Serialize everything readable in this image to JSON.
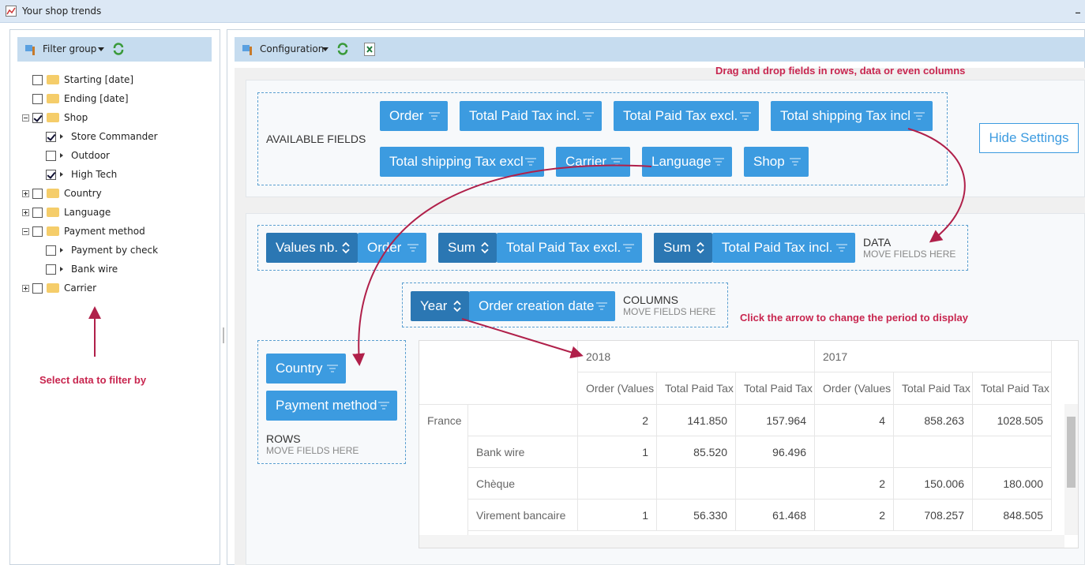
{
  "window": {
    "title": "Your shop trends",
    "minimize": "_"
  },
  "filter": {
    "toolbar_label": "Filter group",
    "tree": [
      {
        "label": "Starting [date]",
        "checked": false
      },
      {
        "label": "Ending [date]",
        "checked": false
      },
      {
        "label": "Shop",
        "checked": true,
        "expanded": true
      },
      {
        "label": "Store Commander",
        "checked": true
      },
      {
        "label": "Outdoor",
        "checked": false
      },
      {
        "label": "High Tech",
        "checked": true
      },
      {
        "label": "Country",
        "checked": false
      },
      {
        "label": "Language",
        "checked": false
      },
      {
        "label": "Payment method",
        "checked": false,
        "expanded": true
      },
      {
        "label": "Payment by check",
        "checked": false
      },
      {
        "label": "Bank wire",
        "checked": false
      },
      {
        "label": "Carrier",
        "checked": false
      }
    ]
  },
  "config": {
    "toolbar_label": "Configuration"
  },
  "annotations": {
    "drag": "Drag and drop fields in rows, data or even columns",
    "select": "Select data to filter by",
    "period": "Click the arrow to change the period to display"
  },
  "available": {
    "label": "AVAILABLE FIELDS",
    "fields": [
      "Order",
      "Total Paid Tax incl.",
      "Total Paid Tax excl.",
      "Total shipping Tax incl",
      "Total shipping Tax excl",
      "Carrier",
      "Language",
      "Shop"
    ]
  },
  "hide_settings": "Hide Settings",
  "data_zone": {
    "label": "DATA",
    "hint": "MOVE FIELDS HERE",
    "items": [
      {
        "agg": "Values nb.",
        "field": "Order"
      },
      {
        "agg": "Sum",
        "field": "Total Paid Tax excl."
      },
      {
        "agg": "Sum",
        "field": "Total Paid Tax incl."
      }
    ]
  },
  "columns_zone": {
    "label": "COLUMNS",
    "hint": "MOVE FIELDS HERE",
    "agg": "Year",
    "field": "Order creation date"
  },
  "rows_zone": {
    "label": "ROWS",
    "hint": "MOVE FIELDS HERE",
    "fields": [
      "Country",
      "Payment method"
    ]
  },
  "table": {
    "years": [
      "2018",
      "2017"
    ],
    "measures": [
      "Order (Values",
      "Total Paid Tax",
      "Total Paid Tax",
      "Order (Values",
      "Total Paid Tax",
      "Total Paid Tax"
    ],
    "rows": [
      {
        "group": "France",
        "label": "",
        "values": [
          "2",
          "141.850",
          "157.964",
          "4",
          "858.263",
          "1028.505"
        ]
      },
      {
        "group": "",
        "label": "Bank wire",
        "values": [
          "1",
          "85.520",
          "96.496",
          "",
          "",
          ""
        ]
      },
      {
        "group": "",
        "label": "Chèque",
        "values": [
          "",
          "",
          "",
          "2",
          "150.006",
          "180.000"
        ]
      },
      {
        "group": "",
        "label": "Virement bancaire",
        "values": [
          "1",
          "56.330",
          "61.468",
          "2",
          "708.257",
          "848.505"
        ]
      }
    ]
  },
  "colors": {
    "chip": "#3c9be0",
    "chip_dark": "#2b77b3",
    "annotation": "#c8264f",
    "toolbar": "#c6dcef"
  }
}
